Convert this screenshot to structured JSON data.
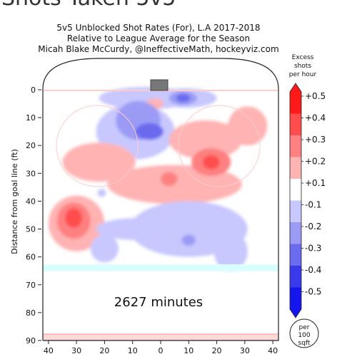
{
  "page_heading": "Shots Taken 5v5",
  "chart_data": {
    "type": "heatmap",
    "title_lines": [
      "5v5 Unblocked Shot Rates (For), L.A 2017-2018",
      "Relative to League Average for the Season",
      "Micah Blake McCurdy, @IneffectiveMath, hockeyviz.com"
    ],
    "ylabel": "Distance from goal line (ft)",
    "xlabel": "",
    "xlim": [
      -42,
      42
    ],
    "ylim": [
      90,
      -2
    ],
    "x_ticks": [
      "40",
      "30",
      "20",
      "10",
      "0",
      "10",
      "20",
      "30",
      "40"
    ],
    "y_ticks": [
      "0",
      "10",
      "20",
      "30",
      "40",
      "50",
      "60",
      "70",
      "80",
      "90"
    ],
    "annotation": "2627 minutes",
    "colorbar": {
      "title_lines": [
        "Excess",
        "shots",
        "per hour"
      ],
      "labels": [
        "+0.5",
        "+0.4",
        "+0.3",
        "+0.2",
        "+0.1",
        "-0.1",
        "-0.2",
        "-0.3",
        "-0.4",
        "-0.5"
      ],
      "colors": [
        "#ff1a1a",
        "#ff4d4d",
        "#ff8080",
        "#ffb3b3",
        "#ffffff",
        "#c8c8ff",
        "#9b9bf5",
        "#6b6bef",
        "#3a3aec",
        "#1515ee"
      ],
      "unit_lines": [
        "per",
        "100",
        "sqft"
      ]
    },
    "regions": [
      {
        "sign": "neg",
        "level": 1,
        "center": [
          -5,
          3
        ],
        "size": [
          34,
          8
        ]
      },
      {
        "sign": "neg",
        "level": 1,
        "center": [
          -9,
          15
        ],
        "size": [
          28,
          20
        ]
      },
      {
        "sign": "neg",
        "level": 2,
        "center": [
          -8,
          11
        ],
        "size": [
          16,
          14
        ]
      },
      {
        "sign": "neg",
        "level": 3,
        "center": [
          -4,
          15
        ],
        "size": [
          10,
          6
        ]
      },
      {
        "sign": "neg",
        "level": 1,
        "center": [
          9,
          3
        ],
        "size": [
          22,
          7
        ]
      },
      {
        "sign": "neg",
        "level": 2,
        "center": [
          8,
          3
        ],
        "size": [
          10,
          5
        ]
      },
      {
        "sign": "neg",
        "level": 3,
        "center": [
          8,
          3
        ],
        "size": [
          5,
          3
        ]
      },
      {
        "sign": "pos",
        "level": 1,
        "center": [
          -2,
          5
        ],
        "size": [
          6,
          4
        ]
      },
      {
        "sign": "pos",
        "level": 1,
        "center": [
          -4,
          15
        ],
        "size": [
          4,
          3
        ]
      },
      {
        "sign": "pos",
        "level": 1,
        "center": [
          -22,
          26
        ],
        "size": [
          26,
          14
        ]
      },
      {
        "sign": "pos",
        "level": 1,
        "center": [
          -30,
          48
        ],
        "size": [
          20,
          20
        ]
      },
      {
        "sign": "pos",
        "level": 2,
        "center": [
          -31,
          47
        ],
        "size": [
          12,
          13
        ]
      },
      {
        "sign": "pos",
        "level": 3,
        "center": [
          -31,
          46
        ],
        "size": [
          6,
          7
        ]
      },
      {
        "sign": "pos",
        "level": 1,
        "center": [
          16,
          18
        ],
        "size": [
          26,
          14
        ]
      },
      {
        "sign": "pos",
        "level": 1,
        "center": [
          5,
          34
        ],
        "size": [
          48,
          14
        ]
      },
      {
        "sign": "pos",
        "level": 1,
        "center": [
          31,
          13
        ],
        "size": [
          14,
          14
        ]
      },
      {
        "sign": "pos",
        "level": 2,
        "center": [
          18,
          26
        ],
        "size": [
          14,
          10
        ]
      },
      {
        "sign": "pos",
        "level": 3,
        "center": [
          18,
          26
        ],
        "size": [
          6,
          5
        ]
      },
      {
        "sign": "pos",
        "level": 2,
        "center": [
          3,
          32
        ],
        "size": [
          6,
          5
        ]
      },
      {
        "sign": "pos",
        "level": 1,
        "center": [
          -22,
          20
        ],
        "size": [
          3,
          2
        ]
      },
      {
        "sign": "pos",
        "level": 1,
        "center": [
          22,
          20
        ],
        "size": [
          3,
          2
        ]
      },
      {
        "sign": "neg",
        "level": 1,
        "center": [
          10,
          50
        ],
        "size": [
          42,
          20
        ]
      },
      {
        "sign": "neg",
        "level": 1,
        "center": [
          -8,
          50
        ],
        "size": [
          30,
          8
        ]
      },
      {
        "sign": "neg",
        "level": 1,
        "center": [
          -20,
          57
        ],
        "size": [
          10,
          10
        ]
      },
      {
        "sign": "neg",
        "level": 1,
        "center": [
          25,
          58
        ],
        "size": [
          12,
          14
        ]
      },
      {
        "sign": "neg",
        "level": 2,
        "center": [
          10,
          54
        ],
        "size": [
          5,
          4
        ]
      },
      {
        "sign": "neg",
        "level": 1,
        "center": [
          -21,
          37
        ],
        "size": [
          3,
          3
        ]
      }
    ]
  }
}
